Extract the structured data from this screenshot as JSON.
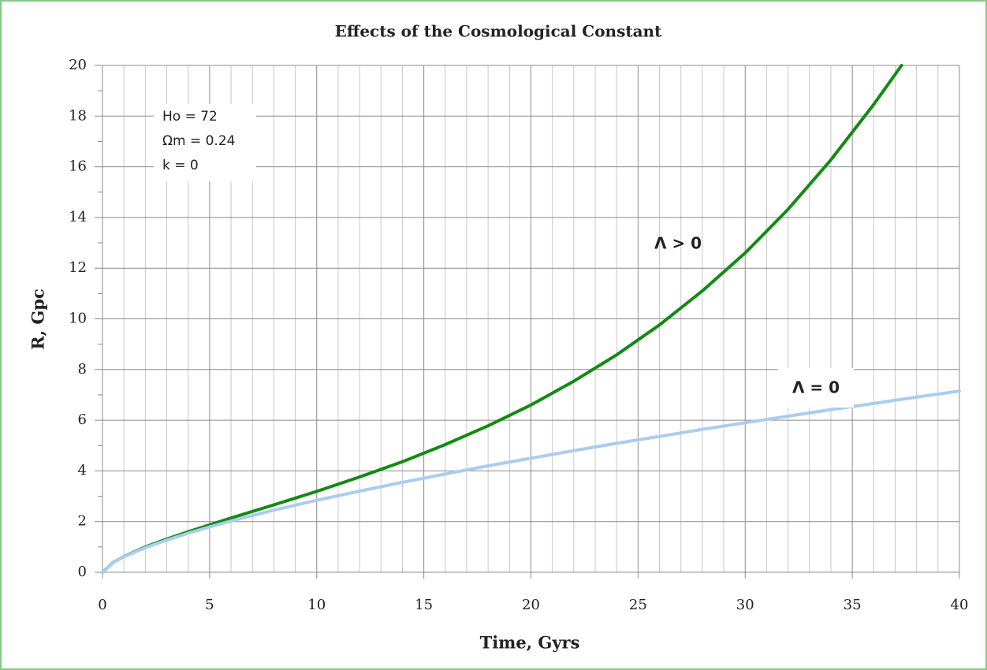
{
  "chart_data": {
    "type": "line",
    "title": "Effects of the Cosmological Constant",
    "xlabel": "Time, Gyrs",
    "ylabel": "R, Gpc",
    "xlim": [
      0,
      40
    ],
    "ylim": [
      0,
      20
    ],
    "xticks": [
      0,
      5,
      10,
      15,
      20,
      25,
      30,
      35,
      40
    ],
    "yticks": [
      0,
      2,
      4,
      6,
      8,
      10,
      12,
      14,
      16,
      18,
      20
    ],
    "xminorticks": [
      1,
      2,
      3,
      4,
      6,
      7,
      8,
      9,
      11,
      12,
      13,
      14,
      16,
      17,
      18,
      19,
      21,
      22,
      23,
      24,
      26,
      27,
      28,
      29,
      31,
      32,
      33,
      34,
      36,
      37,
      38,
      39
    ],
    "yminorticks": [
      1,
      3,
      5,
      7,
      9,
      11,
      13,
      15,
      17,
      19
    ],
    "grid": true,
    "annotations": [
      "Ho = 72",
      "Ωm = 0.24",
      "k = 0"
    ],
    "series": [
      {
        "name": "Λ > 0",
        "color": "#138a13",
        "x": [
          0,
          0.5,
          1,
          2,
          3,
          4,
          5,
          6,
          8,
          10,
          12,
          14,
          16,
          18,
          20,
          22,
          24,
          26,
          28,
          30,
          32,
          34,
          36,
          37.3
        ],
        "values": [
          0,
          0.39,
          0.62,
          1.0,
          1.31,
          1.6,
          1.87,
          2.14,
          2.66,
          3.19,
          3.76,
          4.36,
          5.04,
          5.78,
          6.6,
          7.54,
          8.58,
          9.76,
          11.1,
          12.6,
          14.32,
          16.27,
          18.46,
          20
        ]
      },
      {
        "name": "Λ = 0",
        "color": "#a9cdef",
        "x": [
          0,
          0.5,
          1,
          2,
          3,
          4,
          5,
          6,
          8,
          10,
          12,
          14,
          16,
          18,
          20,
          22,
          24,
          26,
          28,
          30,
          32,
          34,
          36,
          38,
          40
        ],
        "values": [
          0,
          0.385,
          0.61,
          0.97,
          1.27,
          1.54,
          1.79,
          2.02,
          2.45,
          2.84,
          3.2,
          3.55,
          3.88,
          4.2,
          4.5,
          4.8,
          5.09,
          5.36,
          5.64,
          5.9,
          6.16,
          6.42,
          6.66,
          6.91,
          7.15
        ]
      }
    ]
  }
}
